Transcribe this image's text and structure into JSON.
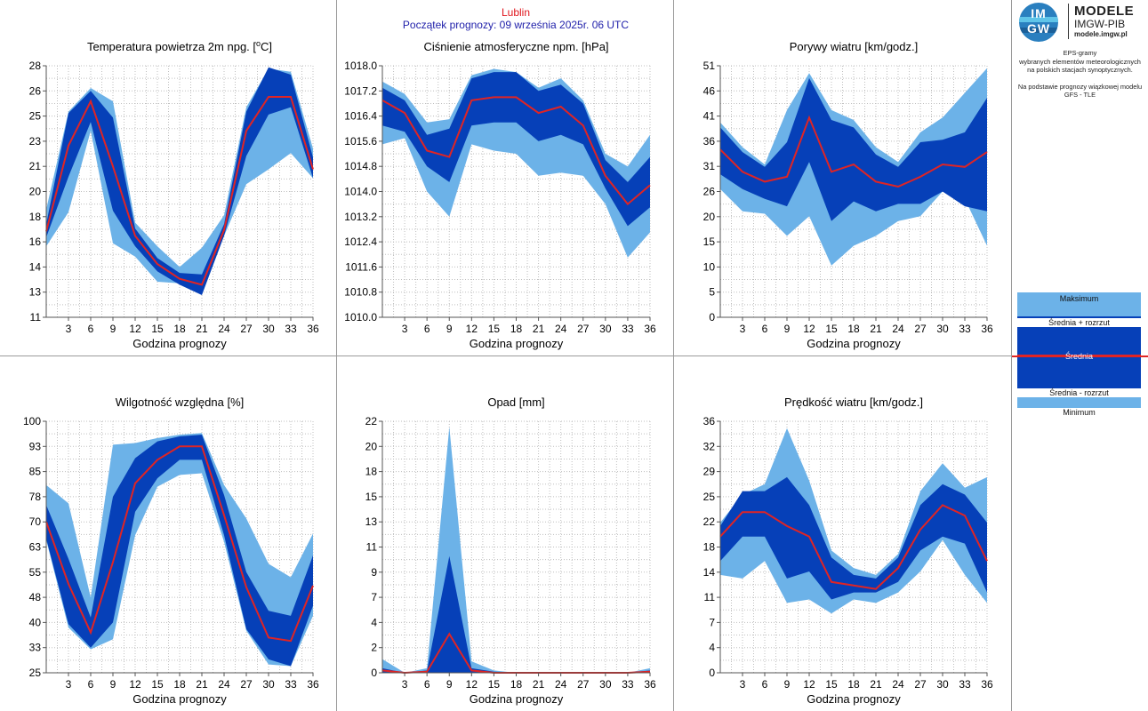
{
  "header": {
    "station": "Lublin",
    "forecast_start": "Początek prognozy: 09 września 2025r. 06 UTC"
  },
  "brand": {
    "logo_top": "IM",
    "logo_bottom": "GW",
    "name_1": "MODELE",
    "name_2": "IMGW-PIB",
    "url": "modele.imgw.pl"
  },
  "info": {
    "line1": "EPS-gramy",
    "line2": "wybranych elementów meteorologicznych",
    "line3": "na polskich stacjach  synoptycznych.",
    "line4": "Na podstawie prognozy wiązkowej modelu",
    "line5": "GFS - TLE"
  },
  "legend": {
    "max": "Maksimum",
    "mean_plus": "Średnia + rozrzut",
    "mean": "Średnia",
    "mean_minus": "Średnia - rozrzut",
    "min": "Minimum"
  },
  "colors": {
    "outer_band": "#6cb2e8",
    "inner_band": "#0640b8",
    "mean_line": "#e02424",
    "grid": "#bfbfbf"
  },
  "chart_data": [
    {
      "type": "area",
      "title": "Temperatura powietrza 2m npg. [",
      "title_sup": "o",
      "title_after": "C]",
      "xlabel": "Godzina prognozy",
      "x": [
        0,
        3,
        6,
        9,
        12,
        15,
        18,
        21,
        24,
        27,
        30,
        33,
        36
      ],
      "xticks": [
        "3",
        "6",
        "9",
        "12",
        "15",
        "18",
        "21",
        "24",
        "27",
        "30",
        "33",
        "36"
      ],
      "yticks": [
        "11",
        "13",
        "14",
        "16",
        "18",
        "20",
        "21",
        "23",
        "25",
        "26",
        "28"
      ],
      "ylim": [
        11,
        28
      ],
      "series": {
        "max": [
          18.3,
          24.9,
          26.5,
          25.6,
          17.4,
          15.8,
          14.4,
          15.7,
          17.9,
          25.2,
          27.8,
          27.6,
          22.4
        ],
        "mean_plus": [
          17.3,
          24.8,
          26.3,
          24.5,
          17.0,
          15.0,
          14.0,
          13.9,
          17.3,
          24.9,
          27.9,
          27.4,
          21.8
        ],
        "mean": [
          16.8,
          22.6,
          25.6,
          21.2,
          16.5,
          14.6,
          13.6,
          13.2,
          16.9,
          23.6,
          25.9,
          25.9,
          21.0
        ],
        "mean_minus": [
          16.4,
          20.5,
          24.2,
          18.2,
          15.8,
          14.1,
          13.2,
          12.5,
          16.5,
          21.9,
          24.7,
          25.2,
          20.4
        ],
        "min": [
          15.8,
          18.1,
          23.6,
          16.0,
          15.1,
          13.4,
          13.3,
          13.1,
          16.5,
          20.0,
          21.0,
          22.1,
          20.4
        ]
      }
    },
    {
      "type": "area",
      "title": "Ciśnienie atmosferyczne npm. [hPa]",
      "xlabel": "Godzina prognozy",
      "x": [
        0,
        3,
        6,
        9,
        12,
        15,
        18,
        21,
        24,
        27,
        30,
        33,
        36
      ],
      "xticks": [
        "3",
        "6",
        "9",
        "12",
        "15",
        "18",
        "21",
        "24",
        "27",
        "30",
        "33",
        "36"
      ],
      "yticks": [
        "1010.0",
        "1010.8",
        "1011.6",
        "1012.4",
        "1013.2",
        "1014.0",
        "1014.8",
        "1015.6",
        "1016.4",
        "1017.2",
        "1018.0"
      ],
      "ylim": [
        1010.0,
        1018.0
      ],
      "series": {
        "max": [
          1017.5,
          1017.1,
          1016.2,
          1016.3,
          1017.7,
          1017.9,
          1017.8,
          1017.3,
          1017.6,
          1016.9,
          1015.2,
          1014.8,
          1015.8
        ],
        "mean_plus": [
          1017.3,
          1016.9,
          1015.8,
          1016.0,
          1017.6,
          1017.8,
          1017.8,
          1017.2,
          1017.4,
          1016.8,
          1015.0,
          1014.3,
          1015.1
        ],
        "mean": [
          1016.9,
          1016.5,
          1015.3,
          1015.1,
          1016.9,
          1017.0,
          1017.0,
          1016.5,
          1016.7,
          1016.1,
          1014.5,
          1013.6,
          1014.2
        ],
        "mean_minus": [
          1016.1,
          1015.9,
          1014.8,
          1014.3,
          1016.1,
          1016.2,
          1016.2,
          1015.6,
          1015.8,
          1015.5,
          1014.1,
          1012.9,
          1013.5
        ],
        "min": [
          1015.5,
          1015.7,
          1014.0,
          1013.2,
          1015.5,
          1015.3,
          1015.2,
          1014.5,
          1014.6,
          1014.5,
          1013.6,
          1011.9,
          1012.7
        ]
      }
    },
    {
      "type": "area",
      "title": "Porywy wiatru [km/godz.]",
      "xlabel": "Godzina prognozy",
      "x": [
        0,
        3,
        6,
        9,
        12,
        15,
        18,
        21,
        24,
        27,
        30,
        33,
        36
      ],
      "xticks": [
        "3",
        "6",
        "9",
        "12",
        "15",
        "18",
        "21",
        "24",
        "27",
        "30",
        "33",
        "36"
      ],
      "yticks": [
        "0",
        "5",
        "10",
        "15",
        "20",
        "26",
        "31",
        "36",
        "41",
        "46",
        "51"
      ],
      "ylim": [
        0,
        51
      ],
      "series": {
        "max": [
          39.5,
          34.5,
          31.0,
          42.0,
          49.5,
          42.0,
          40.0,
          34.5,
          31.5,
          37.5,
          40.5,
          45.5,
          50.5
        ],
        "mean_plus": [
          38.5,
          33.5,
          30.5,
          35.5,
          48.5,
          40.0,
          38.5,
          33.0,
          30.5,
          35.5,
          36.0,
          37.5,
          44.5
        ],
        "mean": [
          34.0,
          29.5,
          27.5,
          28.5,
          40.5,
          29.5,
          31.0,
          27.5,
          26.5,
          28.5,
          31.0,
          30.5,
          33.5
        ],
        "mean_minus": [
          29.0,
          26.0,
          24.0,
          22.5,
          31.5,
          19.5,
          23.5,
          21.5,
          23.0,
          23.0,
          25.5,
          22.5,
          21.5
        ],
        "min": [
          26.0,
          21.5,
          21.0,
          16.5,
          20.5,
          10.5,
          14.5,
          16.5,
          19.5,
          20.5,
          25.5,
          24.0,
          14.5
        ]
      }
    },
    {
      "type": "area",
      "title": "Wilgotność względna [%]",
      "xlabel": "Godzina prognozy",
      "x": [
        0,
        3,
        6,
        9,
        12,
        15,
        18,
        21,
        24,
        27,
        30,
        33,
        36
      ],
      "xticks": [
        "3",
        "6",
        "9",
        "12",
        "15",
        "18",
        "21",
        "24",
        "27",
        "30",
        "33",
        "36"
      ],
      "yticks": [
        "25",
        "33",
        "40",
        "48",
        "55",
        "63",
        "70",
        "78",
        "85",
        "93",
        "100"
      ],
      "ylim": [
        25,
        100
      ],
      "series": {
        "max": [
          81.0,
          75.5,
          47.5,
          93.0,
          93.5,
          95.0,
          96.0,
          96.5,
          81.0,
          71.0,
          57.5,
          53.5,
          66.5
        ],
        "mean_plus": [
          75.0,
          59.0,
          41.5,
          77.5,
          89.0,
          94.0,
          95.5,
          96.0,
          78.0,
          55.0,
          43.5,
          42.0,
          60.0
        ],
        "mean": [
          70.0,
          51.5,
          37.0,
          58.0,
          81.5,
          88.5,
          92.5,
          92.5,
          72.0,
          50.5,
          35.5,
          34.5,
          51.0
        ],
        "mean_minus": [
          65.0,
          39.5,
          32.5,
          40.0,
          73.0,
          83.0,
          88.5,
          88.5,
          66.0,
          38.0,
          29.0,
          27.0,
          45.0
        ],
        "min": [
          64.5,
          38.5,
          32.0,
          35.0,
          66.0,
          80.5,
          84.0,
          84.5,
          64.0,
          37.5,
          27.5,
          27.0,
          42.0
        ]
      }
    },
    {
      "type": "area",
      "title": "Opad [mm]",
      "xlabel": "Godzina prognozy",
      "x": [
        0,
        3,
        6,
        9,
        12,
        15,
        18,
        21,
        24,
        27,
        30,
        33,
        36
      ],
      "xticks": [
        "3",
        "6",
        "9",
        "12",
        "15",
        "18",
        "21",
        "24",
        "27",
        "30",
        "33",
        "36"
      ],
      "yticks": [
        "0",
        "2",
        "4",
        "7",
        "9",
        "11",
        "13",
        "15",
        "18",
        "20",
        "22"
      ],
      "ylim": [
        0,
        22
      ],
      "series": {
        "max": [
          1.2,
          0.0,
          0.4,
          21.5,
          1.0,
          0.2,
          0.0,
          0.0,
          0.0,
          0.0,
          0.0,
          0.0,
          0.4
        ],
        "mean_plus": [
          0.4,
          0.0,
          0.2,
          10.2,
          0.4,
          0.1,
          0.0,
          0.0,
          0.0,
          0.0,
          0.0,
          0.0,
          0.2
        ],
        "mean": [
          0.2,
          0.0,
          0.1,
          3.4,
          0.2,
          0.0,
          0.0,
          0.0,
          0.0,
          0.0,
          0.0,
          0.0,
          0.1
        ],
        "mean_minus": [
          0.0,
          0.0,
          0.0,
          0.0,
          0.0,
          0.0,
          0.0,
          0.0,
          0.0,
          0.0,
          0.0,
          0.0,
          0.0
        ],
        "min": [
          0.0,
          0.0,
          0.0,
          0.0,
          0.0,
          0.0,
          0.0,
          0.0,
          0.0,
          0.0,
          0.0,
          0.0,
          0.0
        ]
      }
    },
    {
      "type": "area",
      "title": "Prędkość wiatru [km/godz.]",
      "xlabel": "Godzina prognozy",
      "x": [
        0,
        3,
        6,
        9,
        12,
        15,
        18,
        21,
        24,
        27,
        30,
        33,
        36
      ],
      "xticks": [
        "3",
        "6",
        "9",
        "12",
        "15",
        "18",
        "21",
        "24",
        "27",
        "30",
        "33",
        "36"
      ],
      "yticks": [
        "0",
        "4",
        "7",
        "11",
        "14",
        "18",
        "22",
        "25",
        "29",
        "32",
        "36"
      ],
      "ylim": [
        0,
        36
      ],
      "series": {
        "max": [
          21.5,
          25.5,
          27.0,
          35.0,
          27.5,
          17.5,
          15.0,
          14.0,
          17.0,
          26.0,
          30.0,
          26.5,
          28.0
        ],
        "mean_plus": [
          21.0,
          26.0,
          26.0,
          28.0,
          24.0,
          16.5,
          14.0,
          13.5,
          16.5,
          24.0,
          27.0,
          25.5,
          21.5
        ],
        "mean": [
          19.5,
          23.0,
          23.0,
          21.0,
          19.5,
          13.0,
          12.5,
          12.0,
          15.0,
          20.5,
          24.0,
          22.5,
          16.0
        ],
        "mean_minus": [
          16.0,
          19.5,
          19.5,
          13.5,
          14.5,
          10.5,
          11.5,
          11.5,
          13.0,
          17.5,
          19.5,
          18.5,
          11.5
        ],
        "min": [
          14.0,
          13.5,
          16.0,
          10.0,
          10.5,
          8.5,
          10.5,
          10.0,
          11.5,
          14.5,
          19.0,
          14.0,
          10.0
        ]
      }
    }
  ]
}
